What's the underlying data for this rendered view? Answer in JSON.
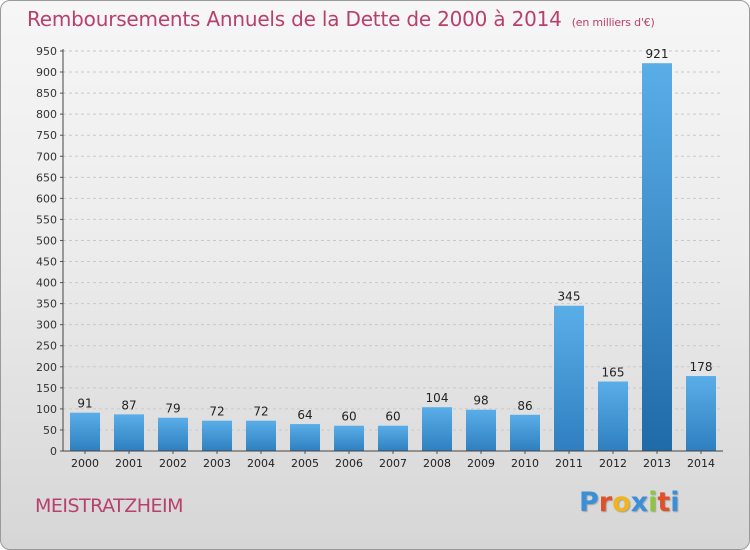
{
  "header": {
    "title": "Remboursements Annuels de la Dette de 2000 à 2014",
    "subtitle": "(en milliers d'€)"
  },
  "footer": {
    "place": "MEISTRATZHEIM",
    "brand": "Proxiti"
  },
  "colors": {
    "title": "#b8406d",
    "bar_light": "#5aaee8",
    "bar_dark": "#2f7fc0",
    "bar_highlight_dark": "#1f6aa8"
  },
  "chart_data": {
    "type": "bar",
    "title": "Remboursements Annuels de la Dette de 2000 à 2014",
    "subtitle": "(en milliers d'€)",
    "xlabel": "",
    "ylabel": "",
    "categories": [
      "2000",
      "2001",
      "2002",
      "2003",
      "2004",
      "2005",
      "2006",
      "2007",
      "2008",
      "2009",
      "2010",
      "2011",
      "2012",
      "2013",
      "2014"
    ],
    "values": [
      91,
      87,
      79,
      72,
      72,
      64,
      60,
      60,
      104,
      98,
      86,
      345,
      165,
      921,
      178
    ],
    "ylim": [
      0,
      950
    ],
    "yticks": [
      0,
      50,
      100,
      150,
      200,
      250,
      300,
      350,
      400,
      450,
      500,
      550,
      600,
      650,
      700,
      750,
      800,
      850,
      900,
      950
    ],
    "grid": true,
    "data_labels": true
  }
}
